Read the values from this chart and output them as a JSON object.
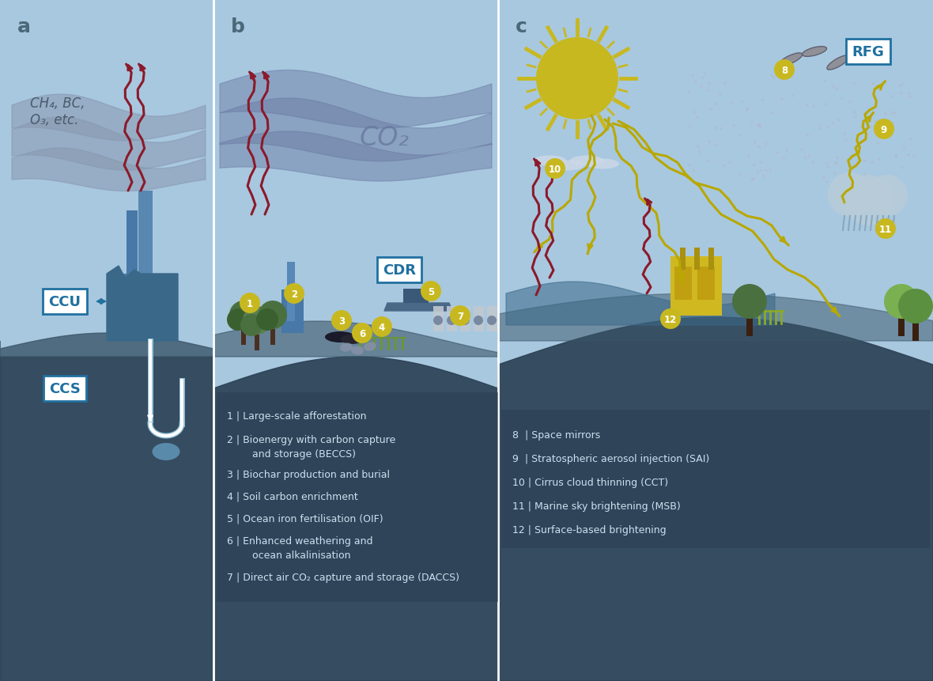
{
  "bg_color": "#a8c8e0",
  "ground_dark": "#3a5068",
  "label_letters_color": "#4a6878",
  "white_text": "#cce0f0",
  "box_text": "#2070a0",
  "title_a": "a",
  "title_b": "b",
  "title_c": "c",
  "ccu_label": "CCU",
  "ccs_label": "CCS",
  "cdr_label": "CDR",
  "rfg_label": "RFG",
  "ch4_text": "CH₄, BC,\nO₃, etc.",
  "co2_text": "CO₂",
  "number_bg": "#c8b820",
  "arrow_red": "#8b1a2a",
  "arrow_yellow": "#b8a800",
  "sun_color": "#c8b820",
  "factory_color": "#5090b8",
  "tree_dark": "#4a7040",
  "tree_light": "#7ab050",
  "building_yellow": "#d0b820",
  "legend_b_entries": [
    [
      287,
      342,
      "1 | Large-scale afforestation"
    ],
    [
      287,
      312,
      "2 | Bioenergy with carbon capture"
    ],
    [
      303,
      294,
      "    and storage (BECCS)"
    ],
    [
      287,
      268,
      "3 | Biochar production and burial"
    ],
    [
      287,
      240,
      "4 | Soil carbon enrichment"
    ],
    [
      287,
      212,
      "5 | Ocean iron fertilisation (OIF)"
    ],
    [
      287,
      184,
      "6 | Enhanced weathering and"
    ],
    [
      303,
      166,
      "    ocean alkalinisation"
    ],
    [
      287,
      138,
      "7 | Direct air CO₂ capture and storage (DACCS)"
    ]
  ],
  "legend_c_entries": [
    [
      648,
      318,
      "8  | Space mirrors"
    ],
    [
      648,
      288,
      "9  | Stratospheric aerosol injection (SAI)"
    ],
    [
      648,
      258,
      "10 | Cirrus cloud thinning (CCT)"
    ],
    [
      648,
      228,
      "11 | Marine sky brightening (MSB)"
    ],
    [
      648,
      198,
      "12 | Surface-based brightening"
    ]
  ]
}
